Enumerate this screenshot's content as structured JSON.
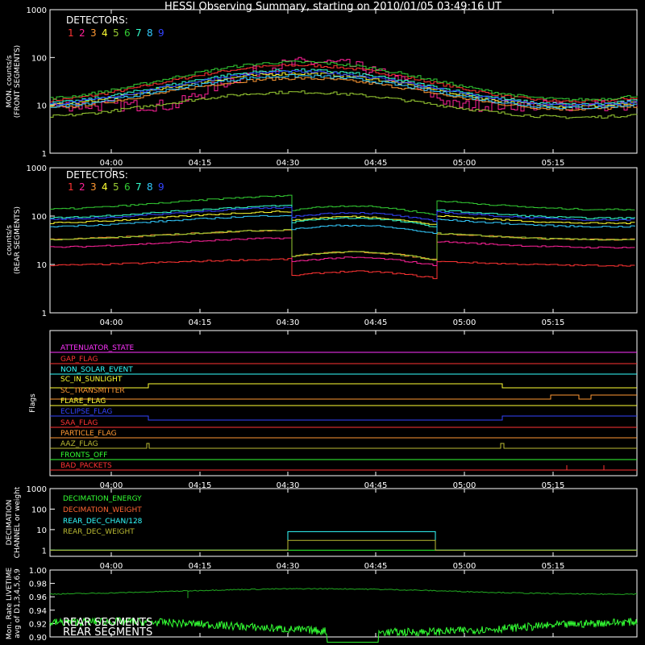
{
  "title": "HESSI Observing Summary, starting on 2010/01/05 03:49:16 UT",
  "time_ticks": [
    "04:00",
    "04:15",
    "04:30",
    "04:45",
    "05:00",
    "05:15"
  ],
  "chart_data": [
    {
      "type": "line",
      "ylabel": [
        "MON. counts/s",
        "(FRONT SEGMENTS)"
      ],
      "ylim": [
        1,
        1000
      ],
      "y_scale": "log",
      "y_ticks": [
        "1",
        "10",
        "100",
        "1000"
      ],
      "legend_title": "DETECTORS:",
      "series": [
        {
          "name": "1",
          "color": "#ff3333"
        },
        {
          "name": "2",
          "color": "#ff2299"
        },
        {
          "name": "3",
          "color": "#ff9933"
        },
        {
          "name": "4",
          "color": "#ffff33"
        },
        {
          "name": "5",
          "color": "#99cc33"
        },
        {
          "name": "6",
          "color": "#33cc33"
        },
        {
          "name": "7",
          "color": "#33ffcc"
        },
        {
          "name": "8",
          "color": "#33ccff"
        },
        {
          "name": "9",
          "color": "#3344ff"
        }
      ],
      "x_minutes": [
        0,
        10,
        20,
        30,
        40,
        50,
        60,
        70,
        80,
        90,
        100
      ],
      "levels_front": [
        1.0,
        0.78,
        0.72,
        1.2,
        1.7,
        1.55,
        0.95,
        0.6,
        0.65,
        1.05,
        1.35
      ]
    },
    {
      "type": "line",
      "ylabel": [
        "counts/s",
        "(REAR SEGMENTS)"
      ],
      "ylim": [
        1,
        1000
      ],
      "y_scale": "log",
      "y_ticks": [
        "1",
        "10",
        "100",
        "1000"
      ],
      "legend_title": "DETECTORS:",
      "series": [
        {
          "name": "1",
          "color": "#ff3333"
        },
        {
          "name": "2",
          "color": "#ff2299"
        },
        {
          "name": "3",
          "color": "#ff9933"
        },
        {
          "name": "4",
          "color": "#ffff33"
        },
        {
          "name": "5",
          "color": "#99cc33"
        },
        {
          "name": "6",
          "color": "#33cc33"
        },
        {
          "name": "7",
          "color": "#33ffcc"
        },
        {
          "name": "8",
          "color": "#33ccff"
        },
        {
          "name": "9",
          "color": "#3344ff"
        }
      ],
      "attenuator_interval": [
        "04:30",
        "04:54"
      ]
    },
    {
      "type": "line",
      "ylabel": [
        "Flags"
      ],
      "flags": [
        {
          "name": "ATTENUATOR_STATE",
          "color": "#ff33ff"
        },
        {
          "name": "GAP_FLAG",
          "color": "#ff3333"
        },
        {
          "name": "NON_SOLAR_EVENT",
          "color": "#33ffff"
        },
        {
          "name": "SC_IN_SUNLIGHT",
          "color": "#ffff33"
        },
        {
          "name": "SC_TRANSMITTER",
          "color": "#ff9933"
        },
        {
          "name": "FLARE_FLAG",
          "color": "#ffff33"
        },
        {
          "name": "ECLIPSE_FLAG",
          "color": "#3344ff"
        },
        {
          "name": "SAA_FLAG",
          "color": "#ff3333"
        },
        {
          "name": "PARTICLE_FLAG",
          "color": "#ff9933"
        },
        {
          "name": "AAZ_FLAG",
          "color": "#bbbb33"
        },
        {
          "name": "FRONTS_OFF",
          "color": "#33ff33"
        },
        {
          "name": "BAD_PACKETS",
          "color": "#ff3333"
        }
      ]
    },
    {
      "type": "line",
      "ylabel": [
        "DECIMATION",
        "CHANNEL or weight"
      ],
      "ylim": [
        0.5,
        1000
      ],
      "y_scale": "log",
      "y_ticks": [
        "1",
        "10",
        "100",
        "1000"
      ],
      "series": [
        {
          "name": "DECIMATION_ENERGY",
          "color": "#33ff33"
        },
        {
          "name": "DECIMATION_WEIGHT",
          "color": "#ff6633"
        },
        {
          "name": "REAR_DEC_CHAN/128",
          "color": "#33ffff"
        },
        {
          "name": "REAR_DEC_WEIGHT",
          "color": "#bbbb33"
        }
      ],
      "rear_dec_chan_value": 8,
      "rear_dec_weight_value": 3
    },
    {
      "type": "line",
      "ylabel": [
        "Mon. Rate LIVETIME",
        "avg of D1,3,4,5,6,9"
      ],
      "ylim": [
        0.9,
        1.0
      ],
      "y_ticks": [
        "0.90",
        "0.92",
        "0.94",
        "0.96",
        "0.98",
        "1.00"
      ],
      "series": [
        {
          "name": "REAR SEGMENTS",
          "color": "#22aa22"
        },
        {
          "name": "REAR SEGMENTS",
          "color": "#33ff33"
        }
      ]
    }
  ]
}
